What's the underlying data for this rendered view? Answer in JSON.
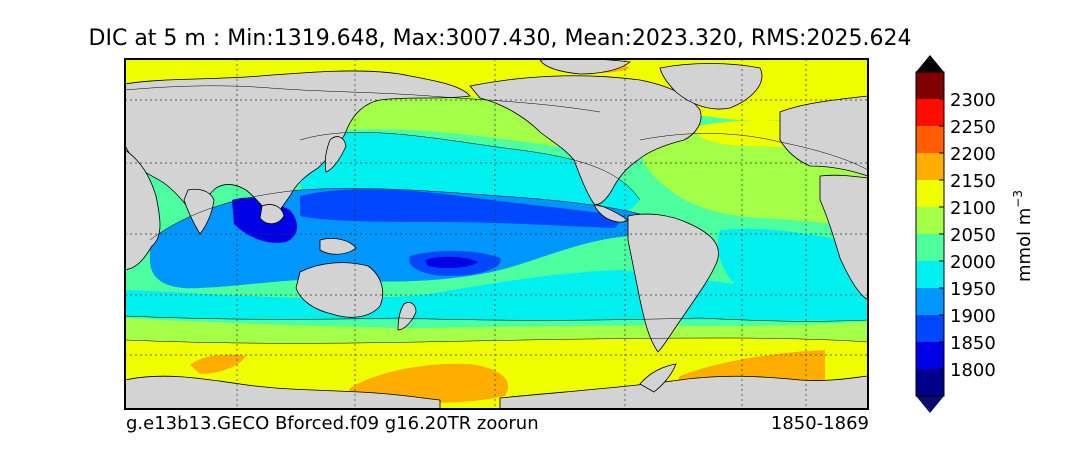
{
  "title": "DIC at 5 m : Min:1319.648, Max:3007.430, Mean:2023.320, RMS:2025.624",
  "footer": {
    "run_name": "g.e13b13.GECO Bforced.f09 g16.20TR zoorun",
    "years": "1850-1869"
  },
  "colorbar": {
    "unit_label": "mmol m",
    "unit_exponent": "−3",
    "ticks": [
      "1800",
      "1850",
      "1900",
      "1950",
      "2000",
      "2050",
      "2100",
      "2150",
      "2200",
      "2250",
      "2300"
    ],
    "under_color": "#0a0a6e",
    "over_color": "#000000",
    "colors": [
      "#00008b",
      "#0000e6",
      "#0047ff",
      "#0096ff",
      "#00f0f0",
      "#4dff9e",
      "#a3ff47",
      "#f0ff00",
      "#ffae00",
      "#ff5d00",
      "#ff0c00",
      "#7f0000"
    ]
  },
  "map": {
    "land_color": "#d3d3d3",
    "grid": true,
    "projection": "cylindrical"
  }
}
